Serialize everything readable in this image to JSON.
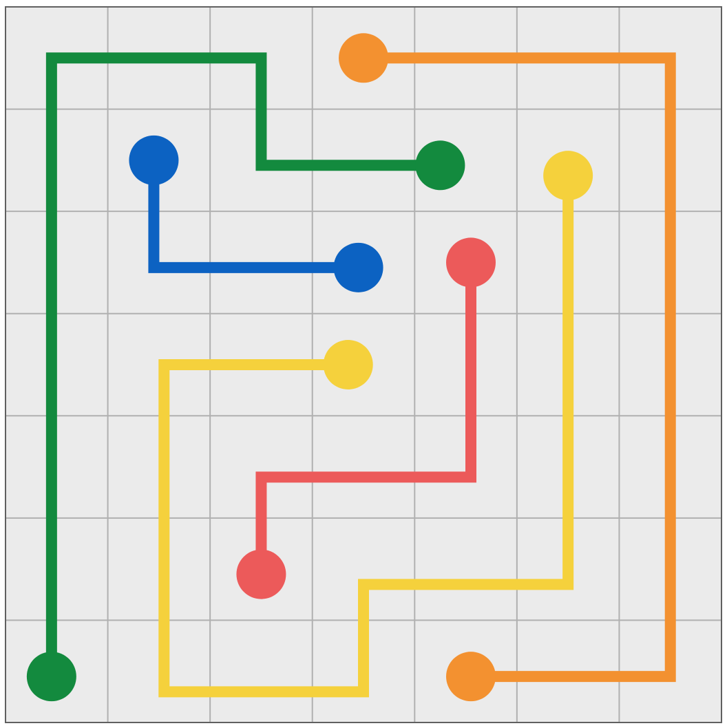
{
  "board": {
    "rows": 7,
    "cols": 7,
    "background": "#ebebeb",
    "grid_color": "#b0b0b0",
    "border_color": "#606060"
  },
  "colors": {
    "green": "#138a3e",
    "orange": "#f39130",
    "blue": "#0c62c2",
    "yellow": "#f5d13c",
    "red": "#ec5a5a"
  },
  "flows": [
    {
      "color": "green",
      "path": [
        [
          0.45,
          6.55
        ],
        [
          0.45,
          0.5
        ],
        [
          2.5,
          0.5
        ],
        [
          2.5,
          1.55
        ],
        [
          4.25,
          1.55
        ]
      ],
      "endpoints": [
        [
          0.45,
          6.55
        ],
        [
          4.25,
          1.55
        ]
      ]
    },
    {
      "color": "orange",
      "path": [
        [
          3.5,
          0.5
        ],
        [
          6.5,
          0.5
        ],
        [
          6.5,
          6.55
        ],
        [
          4.55,
          6.55
        ]
      ],
      "endpoints": [
        [
          3.5,
          0.5
        ],
        [
          4.55,
          6.55
        ]
      ]
    },
    {
      "color": "blue",
      "path": [
        [
          1.45,
          1.5
        ],
        [
          1.45,
          2.55
        ],
        [
          3.45,
          2.55
        ]
      ],
      "endpoints": [
        [
          1.45,
          1.5
        ],
        [
          3.45,
          2.55
        ]
      ]
    },
    {
      "color": "yellow",
      "path": [
        [
          5.5,
          1.65
        ],
        [
          5.5,
          5.65
        ],
        [
          3.5,
          5.65
        ],
        [
          3.5,
          6.7
        ],
        [
          1.55,
          6.7
        ],
        [
          1.55,
          3.5
        ],
        [
          3.35,
          3.5
        ]
      ],
      "endpoints": [
        [
          5.5,
          1.65
        ],
        [
          3.35,
          3.5
        ]
      ]
    },
    {
      "color": "red",
      "path": [
        [
          4.55,
          2.5
        ],
        [
          4.55,
          4.6
        ],
        [
          2.5,
          4.6
        ],
        [
          2.5,
          5.55
        ]
      ],
      "endpoints": [
        [
          4.55,
          2.5
        ],
        [
          2.5,
          5.55
        ]
      ]
    }
  ]
}
